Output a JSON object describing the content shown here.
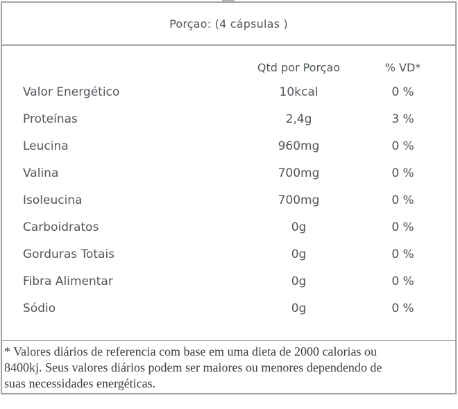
{
  "serving": {
    "text": "Porçao: (4 cápsulas )"
  },
  "table": {
    "columns": {
      "qty": "Qtd por Porçao",
      "vd": "% VD*"
    },
    "rows": [
      {
        "name": "Valor Energético",
        "qty": "10kcal",
        "vd": "0 %"
      },
      {
        "name": "Proteínas",
        "qty": "2,4g",
        "vd": "3 %"
      },
      {
        "name": "Leucina",
        "qty": "960mg",
        "vd": "0 %"
      },
      {
        "name": "Valina",
        "qty": "700mg",
        "vd": "0 %"
      },
      {
        "name": "Isoleucina",
        "qty": "700mg",
        "vd": "0 %"
      },
      {
        "name": "Carboidratos",
        "qty": "0g",
        "vd": "0 %"
      },
      {
        "name": "Gorduras Totais",
        "qty": "0g",
        "vd": "0 %"
      },
      {
        "name": "Fibra Alimentar",
        "qty": "0g",
        "vd": "0 %"
      },
      {
        "name": "Sódio",
        "qty": "0g",
        "vd": "0 %"
      }
    ]
  },
  "footnote": {
    "line1": "* Valores diários de referencia com base em uma dieta de 2000 calorias ou",
    "line2": "8400kj. Seus valores diários podem ser maiores ou menores dependendo de",
    "line3": "suas necessidades energéticas."
  },
  "colors": {
    "border": "#a1a1a1",
    "footnote_divider": "#8a8a8a",
    "table_text": "#50565b",
    "footnote_text": "#3c3c3c",
    "background": "#ffffff"
  }
}
